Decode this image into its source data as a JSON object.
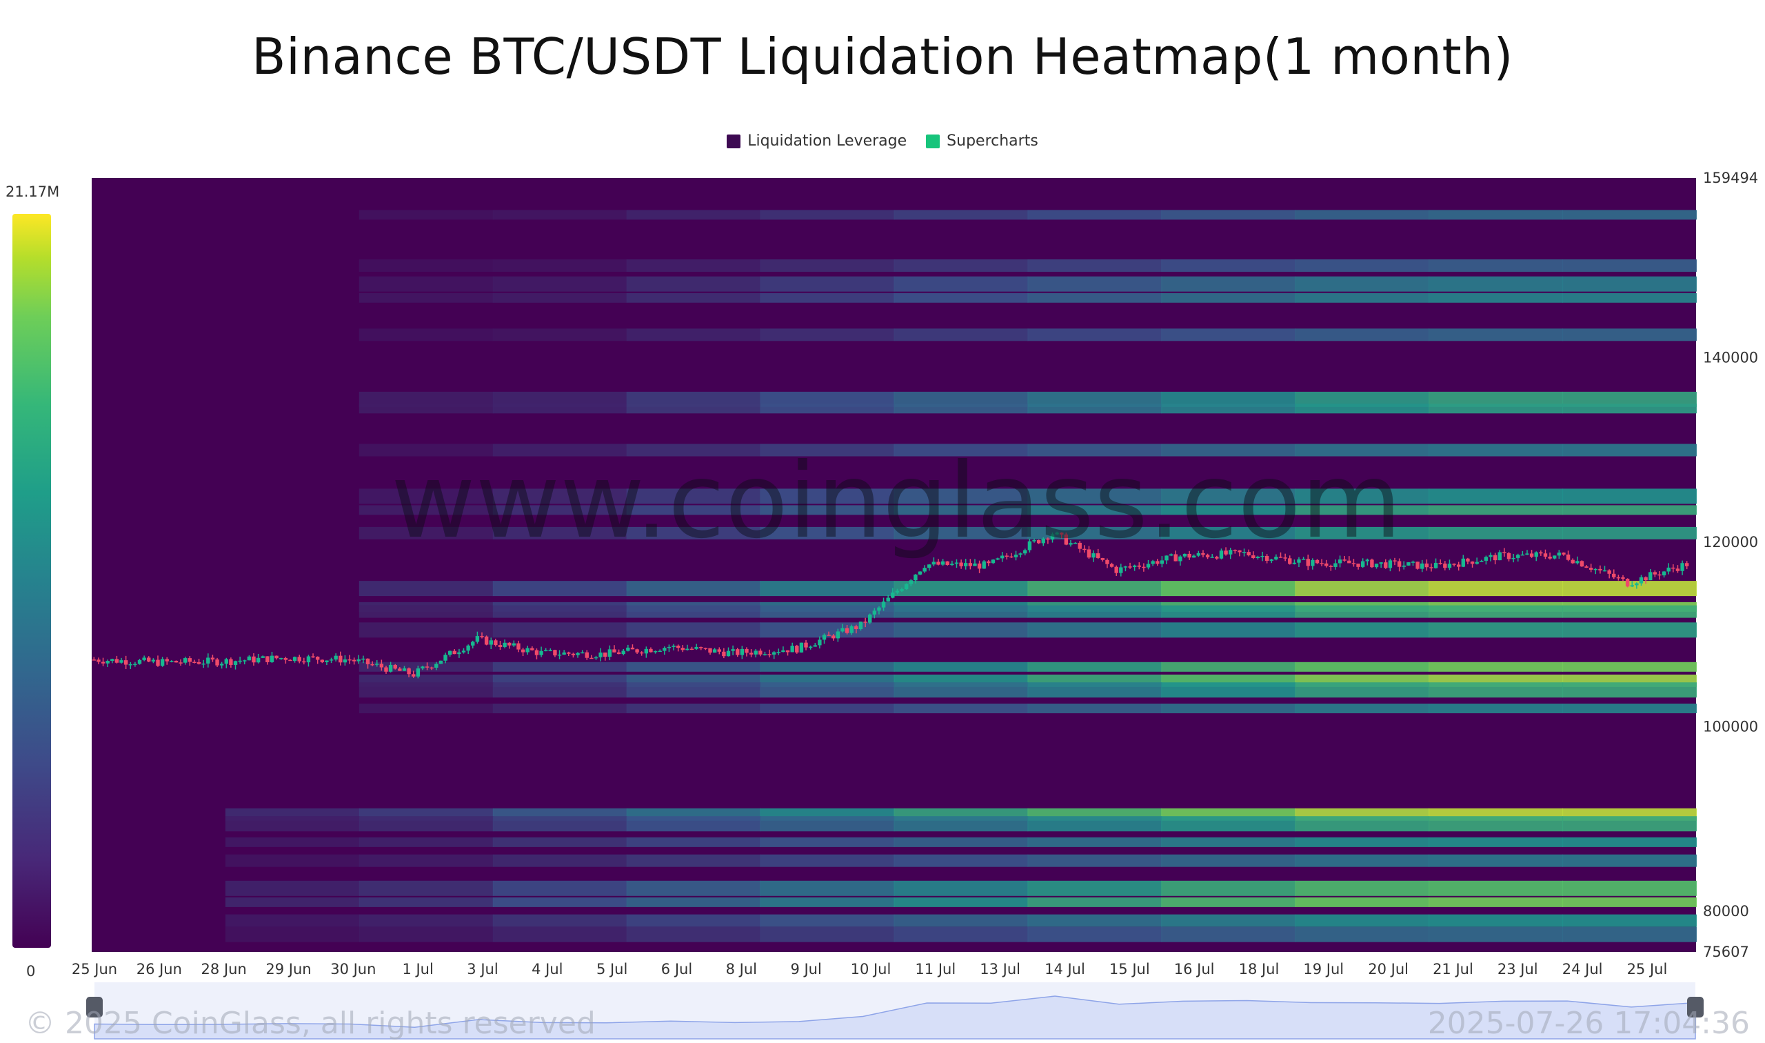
{
  "header": {
    "title": "Binance BTC/USDT Liquidation Heatmap(1 month)"
  },
  "legend": [
    {
      "label": "Liquidation Leverage",
      "color": "#3d0a52"
    },
    {
      "label": "Supercharts",
      "color": "#17c47b"
    }
  ],
  "colorbar": {
    "max_label": "21.17M",
    "min_label": "0"
  },
  "watermark": "www.coinglass.com",
  "footer": {
    "copyright": "© 2025 CoinGlass, all rights reserved",
    "timestamp": "2025-07-26 17:04:36"
  },
  "chart_data": {
    "type": "heatmap",
    "title": "Binance BTC/USDT Liquidation Heatmap(1 month)",
    "x_tick_labels": [
      "25 Jun",
      "26 Jun",
      "28 Jun",
      "29 Jun",
      "30 Jun",
      "1 Jul",
      "3 Jul",
      "4 Jul",
      "5 Jul",
      "6 Jul",
      "8 Jul",
      "9 Jul",
      "10 Jul",
      "11 Jul",
      "13 Jul",
      "14 Jul",
      "15 Jul",
      "16 Jul",
      "18 Jul",
      "19 Jul",
      "20 Jul",
      "21 Jul",
      "23 Jul",
      "24 Jul",
      "25 Jul"
    ],
    "y_tick_labels": [
      159494,
      140000,
      120000,
      100000,
      80000,
      75607
    ],
    "ylim": [
      75607,
      159494
    ],
    "price_series": [
      {
        "label": "25 Jun",
        "close": 107300
      },
      {
        "label": "26 Jun",
        "close": 107000
      },
      {
        "label": "28 Jun",
        "close": 107100
      },
      {
        "label": "29 Jun",
        "close": 107500
      },
      {
        "label": "30 Jun",
        "close": 107300
      },
      {
        "label": "1 Jul",
        "close": 105700
      },
      {
        "label": "3 Jul",
        "close": 109500
      },
      {
        "label": "4 Jul",
        "close": 108000
      },
      {
        "label": "5 Jul",
        "close": 107900
      },
      {
        "label": "6 Jul",
        "close": 108700
      },
      {
        "label": "8 Jul",
        "close": 108000
      },
      {
        "label": "9 Jul",
        "close": 108500
      },
      {
        "label": "10 Jul",
        "close": 111000
      },
      {
        "label": "11 Jul",
        "close": 117600
      },
      {
        "label": "13 Jul",
        "close": 117500
      },
      {
        "label": "14 Jul",
        "close": 121000
      },
      {
        "label": "15 Jul",
        "close": 117000
      },
      {
        "label": "16 Jul",
        "close": 118500
      },
      {
        "label": "18 Jul",
        "close": 118800
      },
      {
        "label": "19 Jul",
        "close": 117800
      },
      {
        "label": "20 Jul",
        "close": 117700
      },
      {
        "label": "21 Jul",
        "close": 117400
      },
      {
        "label": "23 Jul",
        "close": 118500
      },
      {
        "label": "24 Jul",
        "close": 118600
      },
      {
        "label": "25 Jul",
        "close": 115600
      },
      {
        "label": "26 Jul",
        "close": 117800
      }
    ],
    "liquidation_levels": [
      {
        "price": 155500,
        "value": 0.35
      },
      {
        "price": 150000,
        "value": 0.3
      },
      {
        "price": 148000,
        "value": 0.42
      },
      {
        "price": 146500,
        "value": 0.45
      },
      {
        "price": 142500,
        "value": 0.33
      },
      {
        "price": 135500,
        "value": 0.58
      },
      {
        "price": 134500,
        "value": 0.55
      },
      {
        "price": 130000,
        "value": 0.4
      },
      {
        "price": 125000,
        "value": 0.5
      },
      {
        "price": 123500,
        "value": 0.6
      },
      {
        "price": 121000,
        "value": 0.55
      },
      {
        "price": 115000,
        "value": 0.9
      },
      {
        "price": 113000,
        "value": 0.8
      },
      {
        "price": 112500,
        "value": 0.62
      },
      {
        "price": 110500,
        "value": 0.55
      },
      {
        "price": 106500,
        "value": 0.78
      },
      {
        "price": 105000,
        "value": 0.85
      },
      {
        "price": 104000,
        "value": 0.6
      },
      {
        "price": 102000,
        "value": 0.45
      },
      {
        "price": 90500,
        "value": 0.9
      },
      {
        "price": 89500,
        "value": 0.6
      },
      {
        "price": 87500,
        "value": 0.5
      },
      {
        "price": 85500,
        "value": 0.4
      },
      {
        "price": 82500,
        "value": 0.7
      },
      {
        "price": 81000,
        "value": 0.78
      },
      {
        "price": 79000,
        "value": 0.5
      },
      {
        "price": 77500,
        "value": 0.35
      }
    ],
    "colorbar_range": [
      0,
      21170000
    ],
    "colorscale": [
      "#440154",
      "#3e4a89",
      "#26828e",
      "#35b779",
      "#fde725"
    ]
  }
}
